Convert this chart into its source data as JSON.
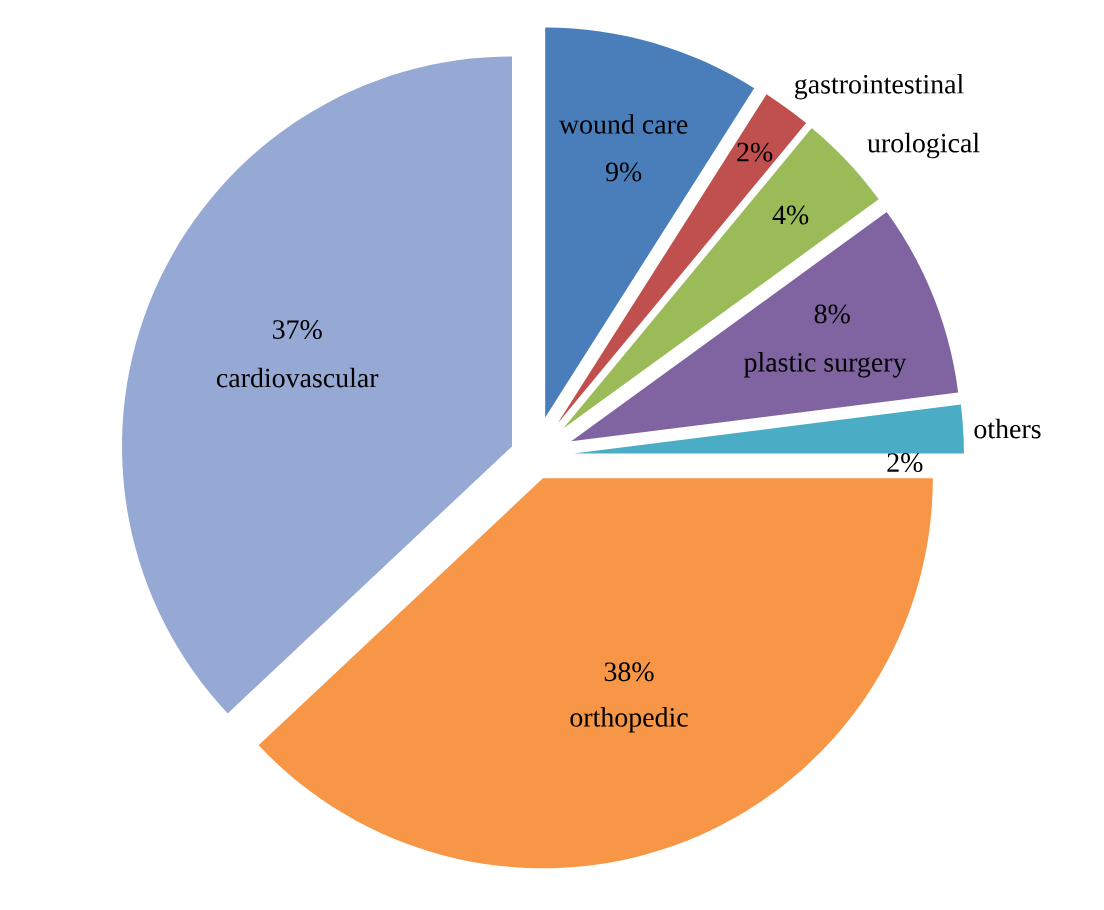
{
  "chart_data": {
    "type": "pie",
    "categories": [
      "wound care",
      "gastrointestinal",
      "urological",
      "plastic surgery",
      "others",
      "orthopedic",
      "cardiovascular"
    ],
    "values": [
      9,
      2,
      4,
      8,
      2,
      38,
      37
    ],
    "colors": [
      "#4a7ebb",
      "#c0504d",
      "#9bbb59",
      "#8064a2",
      "#4bacc6",
      "#f79646",
      "#95a9d4"
    ],
    "value_labels": [
      "9%",
      "2%",
      "4%",
      "8%",
      "2%",
      "38%",
      "37%"
    ]
  }
}
